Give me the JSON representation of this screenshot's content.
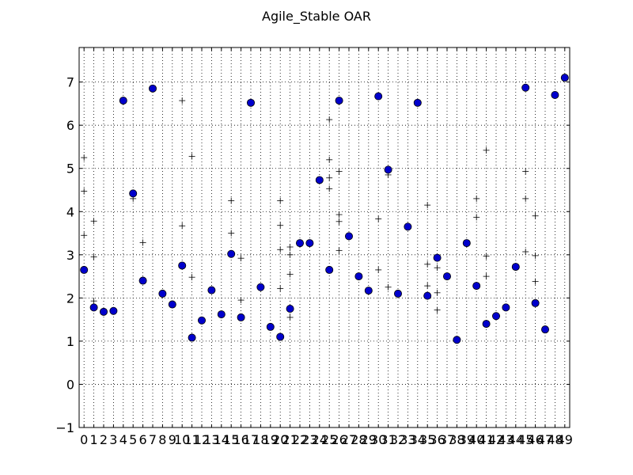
{
  "chart_data": {
    "type": "scatter",
    "title": "Agile_Stable OAR",
    "xlabel": "",
    "ylabel": "",
    "xlim": [
      -0.5,
      49.5
    ],
    "ylim": [
      -1,
      7.8
    ],
    "grid": true,
    "x_ticks": [
      "0",
      "1",
      "2",
      "3",
      "4",
      "5",
      "6",
      "7",
      "8",
      "9",
      "10",
      "11",
      "12",
      "13",
      "14",
      "15",
      "16",
      "17",
      "18",
      "19",
      "20",
      "21",
      "22",
      "23",
      "24",
      "25",
      "26",
      "27",
      "28",
      "29",
      "30",
      "31",
      "32",
      "33",
      "34",
      "35",
      "36",
      "37",
      "38",
      "39",
      "40",
      "41",
      "42",
      "43",
      "44",
      "45",
      "46",
      "47",
      "48",
      "49"
    ],
    "y_ticks": [
      "−1",
      "0",
      "1",
      "2",
      "3",
      "4",
      "5",
      "6",
      "7"
    ],
    "marker_color": "#0000cc",
    "series": [
      {
        "marker": "circle",
        "x": [
          0,
          1,
          2,
          3,
          4,
          5,
          6,
          7,
          8,
          9,
          10,
          11,
          12,
          13,
          14,
          15,
          16,
          17,
          18,
          19,
          20,
          21,
          22,
          23,
          24,
          25,
          26,
          27,
          28,
          29,
          30,
          31,
          32,
          33,
          34,
          35,
          36,
          37,
          38,
          39,
          40,
          41,
          42,
          43,
          44,
          45,
          46,
          47,
          48,
          49
        ],
        "values": [
          2.65,
          1.78,
          1.68,
          1.7,
          6.57,
          4.42,
          2.4,
          6.85,
          2.1,
          1.85,
          2.75,
          1.08,
          1.48,
          2.18,
          1.62,
          3.02,
          1.55,
          6.52,
          2.25,
          1.33,
          1.1,
          1.75,
          3.27,
          3.27,
          4.73,
          2.65,
          6.57,
          3.43,
          2.5,
          2.17,
          6.67,
          4.97,
          2.1,
          3.65,
          6.52,
          2.05,
          2.93,
          2.5,
          1.03,
          3.27,
          2.28,
          1.4,
          1.58,
          1.78,
          2.72,
          6.87,
          1.88,
          1.27,
          6.7,
          7.1
        ]
      },
      {
        "marker": "plus",
        "points": [
          [
            0,
            5.25
          ],
          [
            0,
            4.47
          ],
          [
            0,
            3.45
          ],
          [
            1,
            3.78
          ],
          [
            1,
            2.95
          ],
          [
            1,
            1.93
          ],
          [
            5,
            4.3
          ],
          [
            6,
            3.28
          ],
          [
            10,
            6.57
          ],
          [
            10,
            3.67
          ],
          [
            11,
            5.28
          ],
          [
            11,
            2.48
          ],
          [
            15,
            4.25
          ],
          [
            15,
            3.5
          ],
          [
            16,
            2.92
          ],
          [
            16,
            1.95
          ],
          [
            20,
            4.25
          ],
          [
            20,
            3.68
          ],
          [
            20,
            3.12
          ],
          [
            20,
            2.22
          ],
          [
            21,
            3.18
          ],
          [
            21,
            3.0
          ],
          [
            21,
            2.55
          ],
          [
            21,
            1.55
          ],
          [
            25,
            6.13
          ],
          [
            25,
            5.2
          ],
          [
            25,
            4.78
          ],
          [
            25,
            4.53
          ],
          [
            26,
            4.93
          ],
          [
            26,
            3.93
          ],
          [
            26,
            3.77
          ],
          [
            26,
            3.1
          ],
          [
            30,
            3.83
          ],
          [
            30,
            2.65
          ],
          [
            31,
            4.85
          ],
          [
            31,
            2.25
          ],
          [
            35,
            4.15
          ],
          [
            35,
            2.78
          ],
          [
            35,
            2.28
          ],
          [
            36,
            2.7
          ],
          [
            36,
            2.12
          ],
          [
            36,
            1.72
          ],
          [
            40,
            4.3
          ],
          [
            40,
            3.87
          ],
          [
            41,
            5.42
          ],
          [
            41,
            2.97
          ],
          [
            41,
            2.5
          ],
          [
            45,
            4.93
          ],
          [
            45,
            4.3
          ],
          [
            45,
            3.07
          ],
          [
            46,
            3.9
          ],
          [
            46,
            2.98
          ],
          [
            46,
            2.38
          ]
        ]
      }
    ]
  }
}
